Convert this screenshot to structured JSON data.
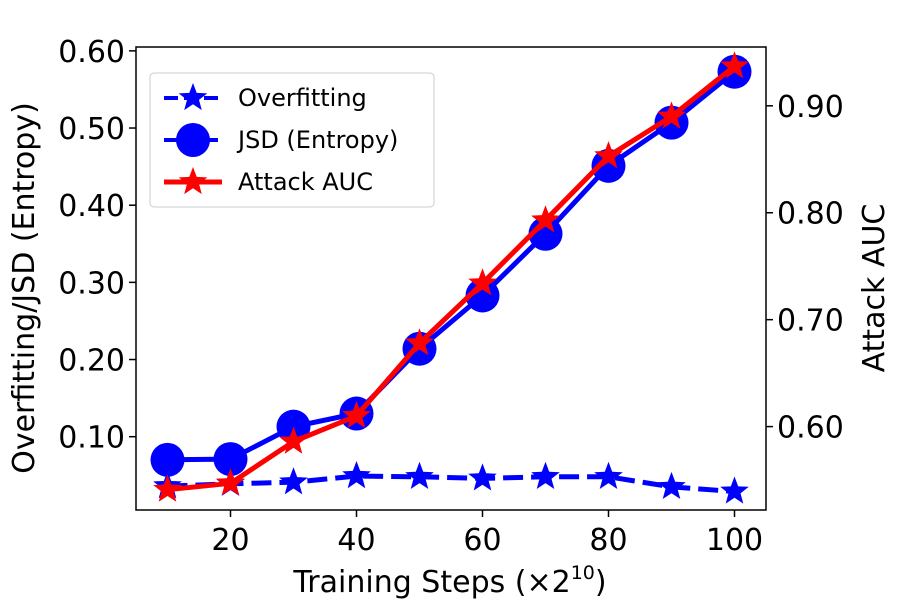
{
  "chart_data": {
    "type": "line",
    "xlabel_prefix": "Training Steps (×2",
    "xlabel_exp": "10",
    "xlabel_suffix": ")",
    "ylabel_left": "Overfitting/JSD (Entropy)",
    "ylabel_right": "Attack AUC",
    "x": [
      10,
      20,
      30,
      40,
      50,
      60,
      70,
      80,
      90,
      100
    ],
    "xlim": [
      5,
      105
    ],
    "ylim_left": [
      0.005,
      0.605
    ],
    "ylim_right": [
      0.522,
      0.955
    ],
    "x_ticks": [
      "20",
      "40",
      "60",
      "80",
      "100"
    ],
    "x_tick_values": [
      20,
      40,
      60,
      80,
      100
    ],
    "y_left_ticks": [
      "0.10",
      "0.20",
      "0.30",
      "0.40",
      "0.50",
      "0.60"
    ],
    "y_left_tick_values": [
      0.1,
      0.2,
      0.3,
      0.4,
      0.5,
      0.6
    ],
    "y_right_ticks": [
      "0.60",
      "0.70",
      "0.80",
      "0.90"
    ],
    "y_right_tick_values": [
      0.6,
      0.7,
      0.8,
      0.9
    ],
    "grid": false,
    "legend_position": "upper-left",
    "series": [
      {
        "name": "Overfitting",
        "axis": "left",
        "color": "#0000ff",
        "linestyle": "dashed",
        "marker": "star",
        "values": [
          0.036,
          0.039,
          0.041,
          0.049,
          0.048,
          0.046,
          0.048,
          0.048,
          0.035,
          0.029
        ]
      },
      {
        "name": "JSD (Entropy)",
        "axis": "left",
        "color": "#0000ff",
        "linestyle": "solid",
        "marker": "circle",
        "values": [
          0.07,
          0.071,
          0.113,
          0.13,
          0.214,
          0.283,
          0.363,
          0.451,
          0.507,
          0.573
        ]
      },
      {
        "name": "Attack AUC",
        "axis": "right",
        "color": "#ff0000",
        "linestyle": "solid",
        "marker": "star",
        "values": [
          0.541,
          0.547,
          0.586,
          0.61,
          0.678,
          0.734,
          0.793,
          0.853,
          0.89,
          0.937
        ]
      }
    ]
  }
}
